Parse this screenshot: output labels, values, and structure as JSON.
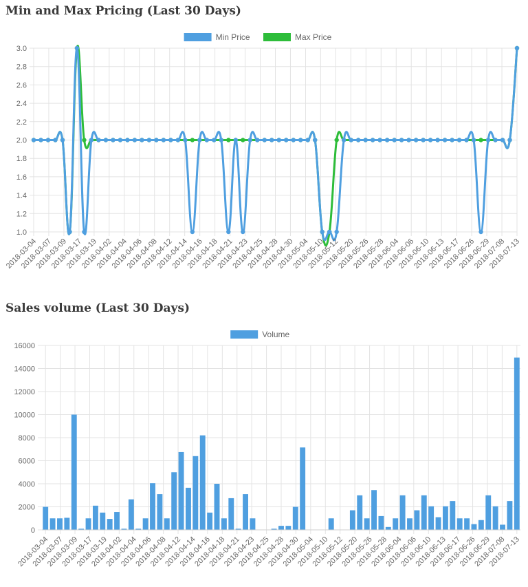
{
  "titles": {
    "price": "Min and Max Pricing (Last 30 Days)",
    "volume": "Sales volume (Last 30 Days)"
  },
  "colors": {
    "min": "#4f9fe0",
    "max": "#2ebd3a",
    "volume": "#4f9fe0",
    "grid": "#e3e3e3"
  },
  "chart_data": [
    {
      "type": "line",
      "title": "Min and Max Pricing (Last 30 Days)",
      "legend": "top",
      "grid": true,
      "ylim": [
        1.0,
        3.0
      ],
      "yticks": [
        "3.0",
        "2.8",
        "2.6",
        "2.4",
        "2.2",
        "2.0",
        "1.8",
        "1.6",
        "1.4",
        "1.2",
        "1.0"
      ],
      "xlabels": [
        "2018-03-04",
        "2018-03-07",
        "2018-03-09",
        "2018-03-17",
        "2018-03-19",
        "2018-04-02",
        "2018-04-04",
        "2018-04-06",
        "2018-04-08",
        "2018-04-12",
        "2018-04-14",
        "2018-04-16",
        "2018-04-18",
        "2018-04-21",
        "2018-04-23",
        "2018-04-25",
        "2018-04-28",
        "2018-04-30",
        "2018-05-04",
        "2018-05-10",
        "2018-05-12",
        "2018-05-20",
        "2018-05-26",
        "2018-05-28",
        "2018-06-04",
        "2018-06-06",
        "2018-06-10",
        "2018-06-13",
        "2018-06-17",
        "2018-06-26",
        "2018-06-29",
        "2018-07-08",
        "2018-07-13"
      ],
      "series": [
        {
          "name": "Min Price",
          "values": [
            2,
            2,
            2,
            2,
            2,
            1,
            3,
            1,
            2,
            2,
            2,
            2,
            2,
            2,
            2,
            2,
            2,
            2,
            2,
            2,
            2,
            2,
            1,
            2,
            2,
            2,
            2,
            1,
            2,
            1,
            2,
            2,
            2,
            2,
            2,
            2,
            2,
            2,
            2,
            2,
            1,
            1,
            1,
            2,
            2,
            2,
            2,
            2,
            2,
            2,
            2,
            2,
            2,
            2,
            2,
            2,
            2,
            2,
            2,
            2,
            2,
            2,
            1,
            2,
            2,
            2,
            2,
            3
          ]
        },
        {
          "name": "Max Price",
          "values": [
            2,
            2,
            2,
            2,
            2,
            1,
            3,
            2,
            2,
            2,
            2,
            2,
            2,
            2,
            2,
            2,
            2,
            2,
            2,
            2,
            2,
            2,
            2,
            2,
            2,
            2,
            2,
            2,
            2,
            2,
            2,
            2,
            2,
            2,
            2,
            2,
            2,
            2,
            2,
            2,
            1,
            1,
            2,
            2,
            2,
            2,
            2,
            2,
            2,
            2,
            2,
            2,
            2,
            2,
            2,
            2,
            2,
            2,
            2,
            2,
            2,
            2,
            2,
            2,
            2,
            2,
            2,
            3
          ]
        }
      ]
    },
    {
      "type": "bar",
      "title": "Sales volume (Last 30 Days)",
      "legend": "top",
      "grid": true,
      "ylim": [
        0,
        16000
      ],
      "yticks": [
        "16000",
        "14000",
        "12000",
        "10000",
        "8000",
        "6000",
        "4000",
        "2000",
        "0"
      ],
      "xlabels": [
        "2018-03-04",
        "2018-03-07",
        "2018-03-09",
        "2018-03-17",
        "2018-03-19",
        "2018-04-02",
        "2018-04-04",
        "2018-04-06",
        "2018-04-08",
        "2018-04-12",
        "2018-04-14",
        "2018-04-16",
        "2018-04-18",
        "2018-04-21",
        "2018-04-23",
        "2018-04-25",
        "2018-04-28",
        "2018-04-30",
        "2018-05-04",
        "2018-05-10",
        "2018-05-12",
        "2018-05-20",
        "2018-05-26",
        "2018-05-28",
        "2018-06-04",
        "2018-06-06",
        "2018-06-10",
        "2018-06-13",
        "2018-06-17",
        "2018-06-26",
        "2018-06-29",
        "2018-07-08",
        "2018-07-13"
      ],
      "series": [
        {
          "name": "Volume",
          "values": [
            2000,
            1000,
            1000,
            1050,
            10000,
            100,
            1000,
            2100,
            1500,
            950,
            1550,
            100,
            2650,
            100,
            1000,
            4050,
            3100,
            1000,
            5000,
            6750,
            3650,
            6400,
            8200,
            1500,
            4000,
            1000,
            2750,
            100,
            3100,
            1000,
            0,
            0,
            100,
            350,
            350,
            2000,
            7150,
            0,
            0,
            0,
            1000,
            0,
            0,
            1700,
            3000,
            1000,
            3450,
            1200,
            250,
            1000,
            3000,
            1000,
            1700,
            3000,
            2050,
            1100,
            2050,
            2500,
            1000,
            1000,
            500,
            850,
            3000,
            2050,
            450,
            2500,
            14950
          ]
        }
      ]
    }
  ]
}
